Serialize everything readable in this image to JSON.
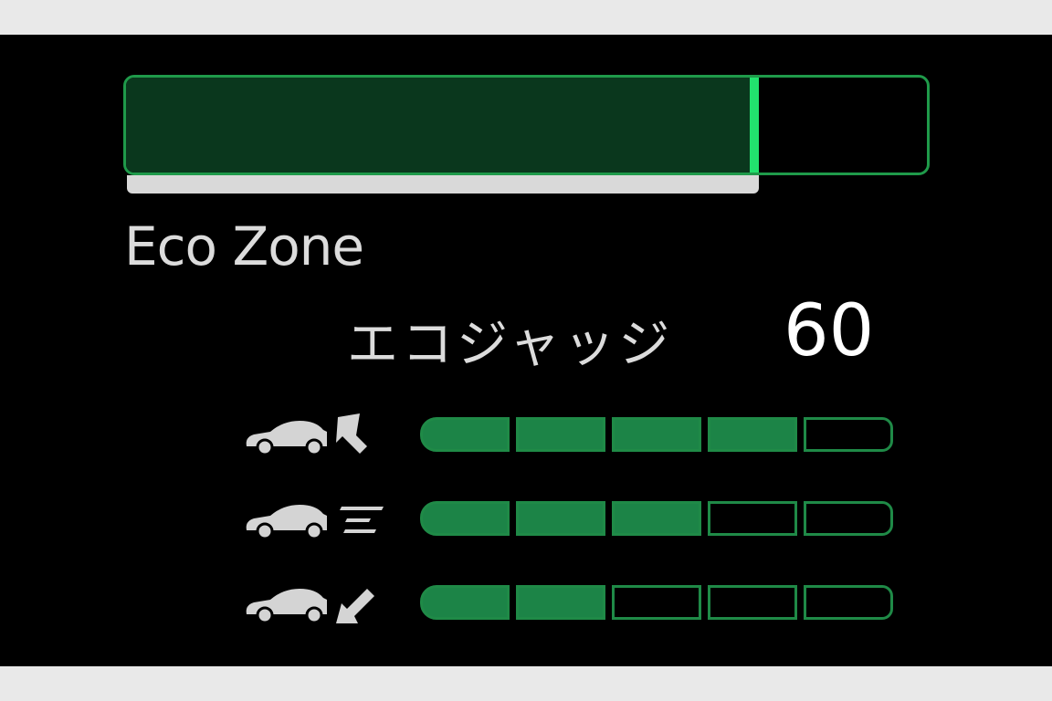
{
  "eco_bar": {
    "level": 0.79,
    "fill_color": "#0a371d",
    "edge_color": "#22e26e",
    "border_color": "#1f9a4a"
  },
  "eco_zone_label": "Eco Zone",
  "eco_judge": {
    "label": "エコジャッジ",
    "score": "60"
  },
  "ratings": [
    {
      "icon": "car-start-acceleration-icon",
      "filled": 4,
      "total": 5
    },
    {
      "icon": "car-cruising-icon",
      "filled": 3,
      "total": 5
    },
    {
      "icon": "car-deceleration-icon",
      "filled": 2,
      "total": 5
    }
  ],
  "colors": {
    "segment_on": "#1c8447",
    "text": "#dcdcdc",
    "background": "#000000"
  }
}
